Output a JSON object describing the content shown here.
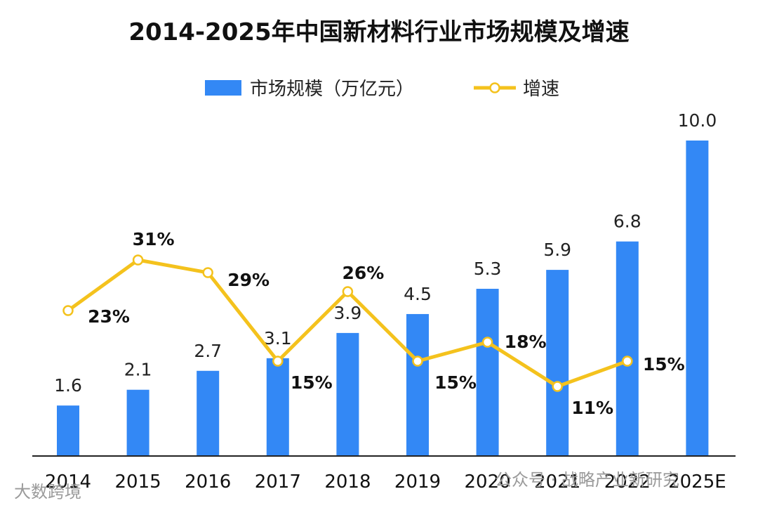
{
  "chart_data": {
    "type": "bar",
    "title": "2014-2025年中国新材料行业市场规模及增速",
    "categories": [
      "2014",
      "2015",
      "2016",
      "2017",
      "2018",
      "2019",
      "2020",
      "2021",
      "2022",
      "2025E"
    ],
    "series": [
      {
        "name": "市场规模（万亿元）",
        "type": "bar",
        "values": [
          1.6,
          2.1,
          2.7,
          3.1,
          3.9,
          4.5,
          5.3,
          5.9,
          6.8,
          10.0
        ],
        "labels": [
          "1.6",
          "2.1",
          "2.7",
          "3.1",
          "3.9",
          "4.5",
          "5.3",
          "5.9",
          "6.8",
          "10.0"
        ]
      },
      {
        "name": "增速",
        "type": "line",
        "values": [
          23,
          31,
          29,
          15,
          26,
          15,
          18,
          11,
          15,
          null
        ],
        "labels": [
          "23%",
          "31%",
          "29%",
          "15%",
          "26%",
          "15%",
          "18%",
          "11%",
          "15%",
          ""
        ]
      }
    ],
    "legend": "top-center",
    "colors": {
      "bar": "#3388f5",
      "line": "#f4c21d"
    }
  },
  "watermarks": {
    "left": "大数跨境",
    "right": "公众号 · 战略产业新研究"
  }
}
